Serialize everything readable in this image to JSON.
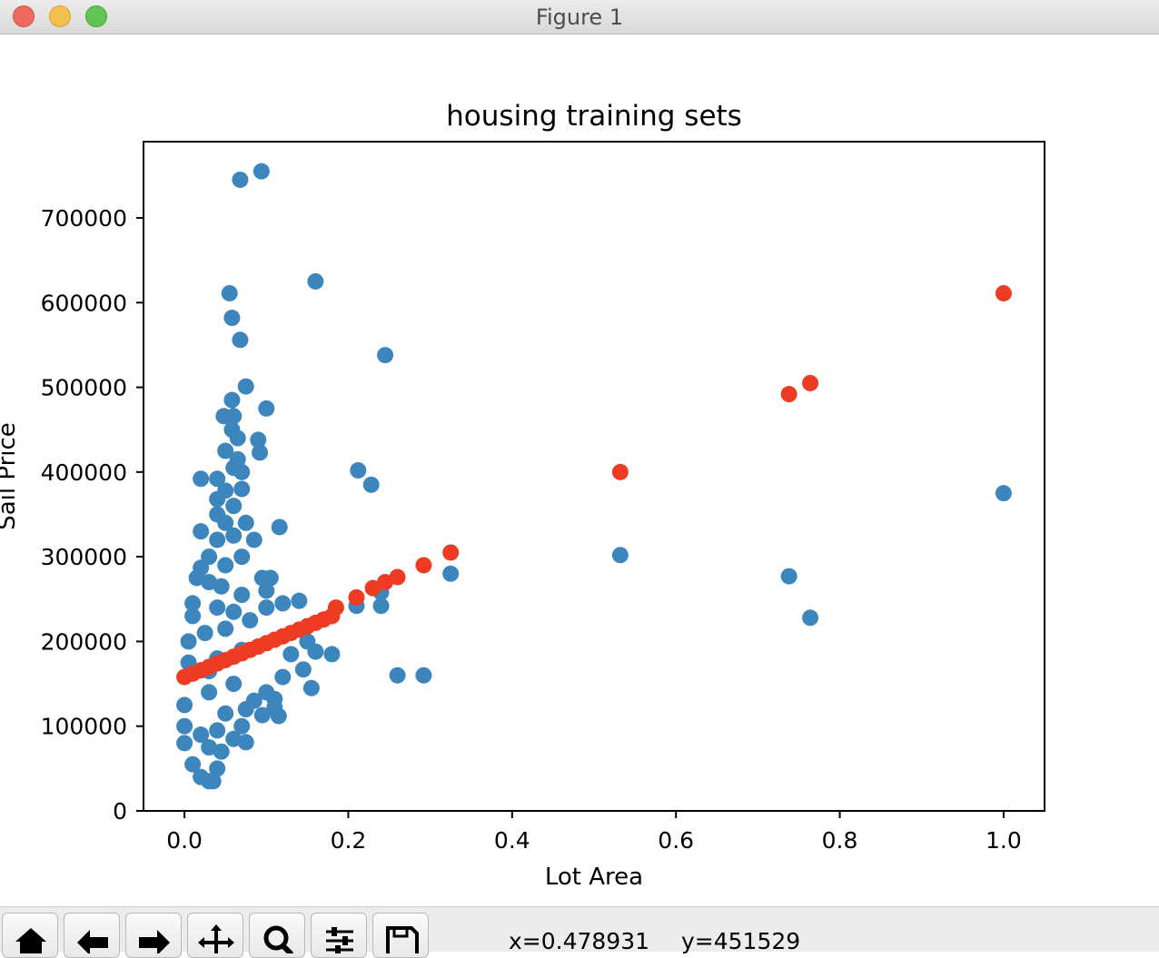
{
  "window": {
    "title": "Figure 1"
  },
  "toolbar": {
    "buttons": [
      "home-icon",
      "back-arrow-icon",
      "forward-arrow-icon",
      "pan-icon",
      "zoom-icon",
      "configure-subplots-icon",
      "save-icon"
    ],
    "coords_x": "x=0.478931",
    "coords_y": "y=451529"
  },
  "colors": {
    "train": "#3d86bd",
    "pred": "#ed3c23"
  },
  "chart_data": {
    "type": "scatter",
    "title": "housing training sets",
    "xlabel": "Lot Area",
    "ylabel": "Sail Price",
    "xlim": [
      -0.05,
      1.05
    ],
    "ylim": [
      0,
      790000
    ],
    "xticks": [
      0.0,
      0.2,
      0.4,
      0.6,
      0.8,
      1.0
    ],
    "xtick_labels": [
      "0.0",
      "0.2",
      "0.4",
      "0.6",
      "0.8",
      "1.0"
    ],
    "yticks": [
      0,
      100000,
      200000,
      300000,
      400000,
      500000,
      600000,
      700000
    ],
    "ytick_labels": [
      "0",
      "100000",
      "200000",
      "300000",
      "400000",
      "500000",
      "600000",
      "700000"
    ],
    "series": [
      {
        "points": [
          [
            0.068,
            745000
          ],
          [
            0.094,
            755000
          ],
          [
            0.055,
            611000
          ],
          [
            0.16,
            625000
          ],
          [
            0.058,
            582000
          ],
          [
            0.068,
            556000
          ],
          [
            0.245,
            538000
          ],
          [
            0.075,
            501000
          ],
          [
            0.058,
            485000
          ],
          [
            0.1,
            475000
          ],
          [
            0.048,
            466000
          ],
          [
            0.06,
            466000
          ],
          [
            0.058,
            450000
          ],
          [
            0.065,
            440000
          ],
          [
            0.09,
            438000
          ],
          [
            0.05,
            425000
          ],
          [
            0.092,
            423000
          ],
          [
            0.065,
            415000
          ],
          [
            0.06,
            405000
          ],
          [
            0.212,
            402000
          ],
          [
            0.07,
            400000
          ],
          [
            0.02,
            392000
          ],
          [
            0.04,
            392000
          ],
          [
            0.228,
            385000
          ],
          [
            0.07,
            380000
          ],
          [
            0.05,
            378000
          ],
          [
            0.04,
            368000
          ],
          [
            0.06,
            360000
          ],
          [
            0.04,
            350000
          ],
          [
            0.05,
            340000
          ],
          [
            0.075,
            340000
          ],
          [
            0.116,
            335000
          ],
          [
            0.02,
            330000
          ],
          [
            0.06,
            325000
          ],
          [
            0.085,
            320000
          ],
          [
            0.04,
            320000
          ],
          [
            0.03,
            300000
          ],
          [
            0.07,
            300000
          ],
          [
            0.05,
            290000
          ],
          [
            0.02,
            287000
          ],
          [
            0.015,
            275000
          ],
          [
            0.095,
            275000
          ],
          [
            0.105,
            275000
          ],
          [
            0.03,
            270000
          ],
          [
            0.045,
            265000
          ],
          [
            0.1,
            260000
          ],
          [
            0.07,
            255000
          ],
          [
            0.14,
            248000
          ],
          [
            0.12,
            245000
          ],
          [
            0.01,
            245000
          ],
          [
            0.04,
            240000
          ],
          [
            0.06,
            235000
          ],
          [
            0.1,
            240000
          ],
          [
            0.24,
            258000
          ],
          [
            0.21,
            242000
          ],
          [
            0.24,
            242000
          ],
          [
            0.01,
            230000
          ],
          [
            0.08,
            225000
          ],
          [
            0.05,
            215000
          ],
          [
            0.025,
            210000
          ],
          [
            0.15,
            200000
          ],
          [
            0.005,
            200000
          ],
          [
            0.13,
            185000
          ],
          [
            0.16,
            188000
          ],
          [
            0.18,
            185000
          ],
          [
            0.07,
            190000
          ],
          [
            0.04,
            180000
          ],
          [
            0.005,
            175000
          ],
          [
            0.03,
            165000
          ],
          [
            0.145,
            167000
          ],
          [
            0.12,
            158000
          ],
          [
            0.155,
            145000
          ],
          [
            0.06,
            150000
          ],
          [
            0.1,
            140000
          ],
          [
            0.03,
            140000
          ],
          [
            0.085,
            130000
          ],
          [
            0.11,
            132000
          ],
          [
            0.11,
            122000
          ],
          [
            0.075,
            120000
          ],
          [
            0.0,
            125000
          ],
          [
            0.05,
            115000
          ],
          [
            0.095,
            113000
          ],
          [
            0.115,
            112000
          ],
          [
            0.07,
            100000
          ],
          [
            0.0,
            100000
          ],
          [
            0.04,
            95000
          ],
          [
            0.02,
            90000
          ],
          [
            0.06,
            85000
          ],
          [
            0.0,
            80000
          ],
          [
            0.075,
            81000
          ],
          [
            0.03,
            75000
          ],
          [
            0.045,
            70000
          ],
          [
            0.01,
            55000
          ],
          [
            0.04,
            50000
          ],
          [
            0.02,
            40000
          ],
          [
            0.03,
            35000
          ],
          [
            0.035,
            35000
          ],
          [
            0.26,
            160000
          ],
          [
            0.292,
            160000
          ],
          [
            0.325,
            280000
          ],
          [
            0.532,
            302000
          ],
          [
            0.738,
            277000
          ],
          [
            0.764,
            228000
          ],
          [
            1.0,
            375000
          ]
        ]
      },
      {
        "points": [
          [
            0.0,
            158000
          ],
          [
            0.01,
            162000
          ],
          [
            0.02,
            166000
          ],
          [
            0.03,
            170000
          ],
          [
            0.04,
            174000
          ],
          [
            0.05,
            178000
          ],
          [
            0.06,
            182000
          ],
          [
            0.07,
            186000
          ],
          [
            0.08,
            190000
          ],
          [
            0.09,
            194000
          ],
          [
            0.1,
            198000
          ],
          [
            0.11,
            202000
          ],
          [
            0.12,
            206000
          ],
          [
            0.13,
            210000
          ],
          [
            0.14,
            214000
          ],
          [
            0.15,
            218000
          ],
          [
            0.16,
            222000
          ],
          [
            0.17,
            226000
          ],
          [
            0.18,
            230000
          ],
          [
            0.185,
            240000
          ],
          [
            0.21,
            252000
          ],
          [
            0.23,
            263000
          ],
          [
            0.245,
            270000
          ],
          [
            0.26,
            276000
          ],
          [
            0.292,
            290000
          ],
          [
            0.325,
            305000
          ],
          [
            0.532,
            400000
          ],
          [
            0.738,
            492000
          ],
          [
            0.764,
            505000
          ],
          [
            1.0,
            611000
          ]
        ]
      }
    ]
  }
}
